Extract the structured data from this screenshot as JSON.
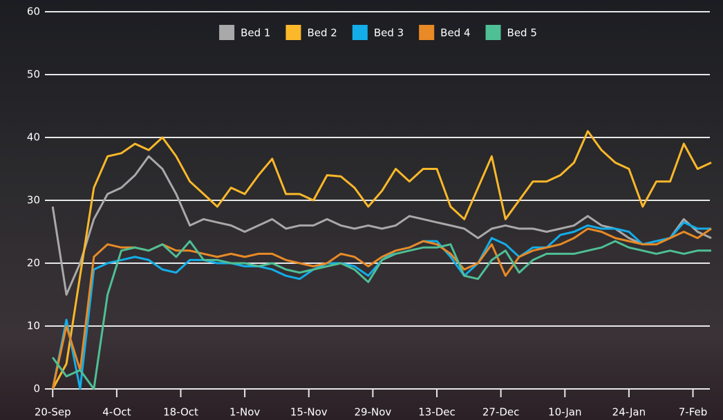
{
  "chart_data": {
    "type": "line",
    "x": [
      0,
      3,
      6,
      9,
      12,
      15,
      18,
      21,
      24,
      27,
      30,
      33,
      36,
      39,
      42,
      45,
      48,
      51,
      54,
      57,
      60,
      63,
      66,
      69,
      72,
      75,
      78,
      81,
      84,
      87,
      90,
      93,
      96,
      99,
      102,
      105,
      108,
      111,
      114,
      117,
      120,
      123,
      126,
      129,
      132,
      135,
      138,
      141,
      144
    ],
    "xlim": [
      -1.7,
      144
    ],
    "xticks": [
      {
        "value": 0,
        "label": "20-Sep"
      },
      {
        "value": 14,
        "label": "4-Oct"
      },
      {
        "value": 28,
        "label": "18-Oct"
      },
      {
        "value": 42,
        "label": "1-Nov"
      },
      {
        "value": 56,
        "label": "15-Nov"
      },
      {
        "value": 70,
        "label": "29-Nov"
      },
      {
        "value": 84,
        "label": "13-Dec"
      },
      {
        "value": 98,
        "label": "27-Dec"
      },
      {
        "value": 112,
        "label": "10-Jan"
      },
      {
        "value": 126,
        "label": "24-Jan"
      },
      {
        "value": 140,
        "label": "7-Feb"
      }
    ],
    "ylim": [
      0,
      60
    ],
    "yticks": [
      0,
      10,
      20,
      30,
      40,
      50,
      60
    ],
    "grid": true,
    "legend": "top",
    "series": [
      {
        "name": "Bed 1",
        "color": "#a9a9a9",
        "values": [
          29,
          15,
          20,
          27,
          31,
          32,
          34,
          37,
          35,
          31,
          26,
          27,
          26.5,
          26,
          25,
          26,
          27,
          25.5,
          26,
          26,
          27,
          26,
          25.5,
          26,
          25.5,
          26,
          27.5,
          27,
          26.5,
          26,
          25.5,
          24,
          25.5,
          26,
          25.5,
          25.5,
          25,
          25.5,
          26,
          27.5,
          26,
          25.5,
          24,
          23,
          23.5,
          24,
          27,
          25,
          24
        ]
      },
      {
        "name": "Bed 2",
        "color": "#fbb829",
        "values": [
          0,
          4,
          18,
          32,
          37,
          37.5,
          39,
          38,
          40,
          37,
          33,
          31,
          29,
          32,
          31,
          34,
          36.6,
          31,
          31,
          30,
          34,
          33.8,
          32,
          29,
          31.5,
          35,
          33,
          35,
          35,
          29,
          27,
          32,
          37,
          27,
          30,
          33,
          33,
          34,
          36,
          41,
          38,
          36,
          35,
          29,
          33,
          33,
          39,
          35,
          36
        ]
      },
      {
        "name": "Bed 3",
        "color": "#13aee9",
        "values": [
          0,
          11,
          0,
          19,
          20,
          20.5,
          21,
          20.5,
          19,
          18.5,
          20.5,
          20.5,
          20,
          20,
          19.5,
          19.5,
          19,
          18,
          17.5,
          19,
          20,
          20,
          19.5,
          18,
          20.5,
          22,
          22.5,
          23.5,
          23.5,
          21,
          18,
          20,
          24,
          23,
          21,
          22.5,
          22.5,
          24.5,
          25,
          26,
          25.5,
          25.5,
          25,
          23,
          23.5,
          24,
          26.5,
          25.5,
          25.5
        ]
      },
      {
        "name": "Bed 4",
        "color": "#e88a25",
        "values": [
          0,
          10,
          3,
          21,
          23,
          22.5,
          22.5,
          22,
          23,
          22,
          22,
          21.5,
          21,
          21.5,
          21,
          21.5,
          21.5,
          20.5,
          20,
          19.5,
          20,
          21.5,
          21,
          19.5,
          21,
          22,
          22.5,
          23.5,
          23,
          21.5,
          19,
          20,
          23,
          18,
          21,
          22,
          22.5,
          23,
          24,
          25.5,
          25,
          24,
          23.5,
          23,
          23,
          24,
          25,
          24,
          25.5
        ]
      },
      {
        "name": "Bed 5",
        "color": "#4fbf95",
        "values": [
          5,
          2,
          3,
          0,
          15,
          22,
          22.5,
          22,
          23,
          21,
          23.5,
          20.5,
          20.5,
          20,
          20,
          19.5,
          20,
          19,
          18.5,
          19,
          19.5,
          20,
          19,
          17,
          20.5,
          21.5,
          22,
          22.5,
          22.5,
          23,
          18,
          17.5,
          20.5,
          22,
          18.5,
          20.5,
          21.5,
          21.5,
          21.5,
          22,
          22.5,
          23.5,
          22.5,
          22,
          21.5,
          22,
          21.5,
          22,
          22
        ]
      }
    ]
  }
}
